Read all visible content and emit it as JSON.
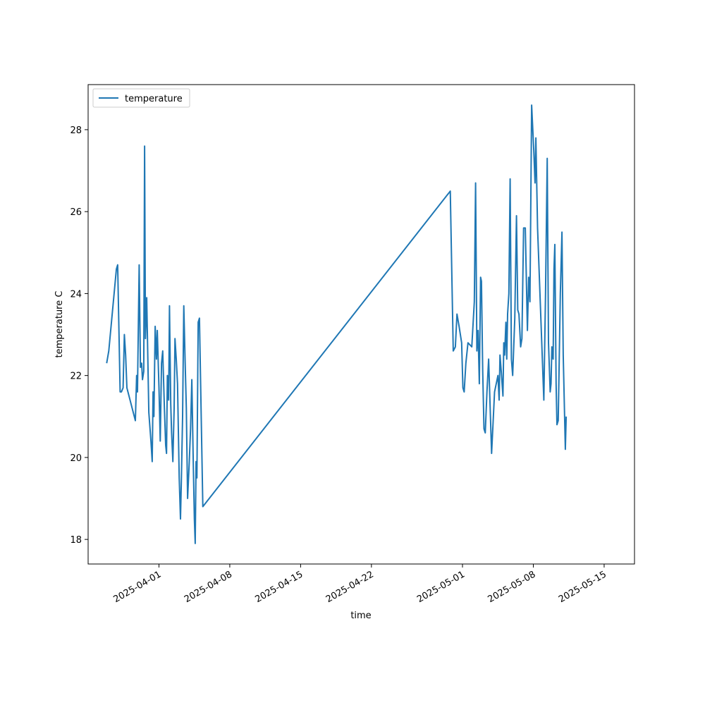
{
  "chart_data": {
    "type": "line",
    "title": "",
    "xlabel": "time",
    "ylabel": "temperature C",
    "x_type": "date",
    "xlim": [
      "2025-03-25",
      "2025-05-18"
    ],
    "ylim": [
      17.4,
      29.1
    ],
    "x_ticks": [
      "2025-04-01",
      "2025-04-08",
      "2025-04-15",
      "2025-04-22",
      "2025-05-01",
      "2025-05-08",
      "2025-05-15"
    ],
    "y_ticks": [
      18,
      20,
      22,
      24,
      26,
      28
    ],
    "grid": false,
    "legend": "upper-left",
    "series": [
      {
        "name": "temperature",
        "color": "#1f77b4",
        "points": [
          [
            "2025-03-26T20:00",
            22.3
          ],
          [
            "2025-03-27T01:00",
            22.6
          ],
          [
            "2025-03-27T19:00",
            24.6
          ],
          [
            "2025-03-27T22:00",
            24.7
          ],
          [
            "2025-03-28T04:00",
            21.6
          ],
          [
            "2025-03-28T07:00",
            21.6
          ],
          [
            "2025-03-28T11:00",
            21.7
          ],
          [
            "2025-03-28T14:00",
            23.0
          ],
          [
            "2025-03-28T17:00",
            22.5
          ],
          [
            "2025-03-28T20:00",
            21.7
          ],
          [
            "2025-03-29T16:00",
            20.9
          ],
          [
            "2025-03-29T19:00",
            22.0
          ],
          [
            "2025-03-29T21:00",
            21.6
          ],
          [
            "2025-03-30T01:00",
            24.7
          ],
          [
            "2025-03-30T04:00",
            22.2
          ],
          [
            "2025-03-30T07:00",
            22.3
          ],
          [
            "2025-03-30T09:00",
            21.9
          ],
          [
            "2025-03-30T12:00",
            22.1
          ],
          [
            "2025-03-30T14:00",
            27.6
          ],
          [
            "2025-03-30T16:00",
            22.9
          ],
          [
            "2025-03-30T19:00",
            23.9
          ],
          [
            "2025-03-31T00:00",
            21.1
          ],
          [
            "2025-03-31T05:00",
            20.4
          ],
          [
            "2025-03-31T08:00",
            19.9
          ],
          [
            "2025-03-31T10:00",
            21.6
          ],
          [
            "2025-03-31T12:00",
            21.0
          ],
          [
            "2025-03-31T15:00",
            23.2
          ],
          [
            "2025-03-31T18:00",
            22.4
          ],
          [
            "2025-03-31T20:00",
            23.1
          ],
          [
            "2025-04-01T00:00",
            21.7
          ],
          [
            "2025-04-01T03:00",
            20.4
          ],
          [
            "2025-04-01T06:00",
            22.3
          ],
          [
            "2025-04-01T09:00",
            22.6
          ],
          [
            "2025-04-01T13:00",
            21.2
          ],
          [
            "2025-04-01T16:00",
            20.3
          ],
          [
            "2025-04-01T18:00",
            20.1
          ],
          [
            "2025-04-01T20:00",
            22.0
          ],
          [
            "2025-04-01T23:00",
            21.4
          ],
          [
            "2025-04-02T01:00",
            23.7
          ],
          [
            "2025-04-02T04:00",
            21.3
          ],
          [
            "2025-04-02T06:00",
            20.6
          ],
          [
            "2025-04-02T09:00",
            19.9
          ],
          [
            "2025-04-02T12:00",
            21.2
          ],
          [
            "2025-04-02T14:00",
            22.9
          ],
          [
            "2025-04-02T17:00",
            22.4
          ],
          [
            "2025-04-02T20:00",
            21.8
          ],
          [
            "2025-04-03T00:00",
            19.5
          ],
          [
            "2025-04-03T03:00",
            18.5
          ],
          [
            "2025-04-03T05:00",
            19.4
          ],
          [
            "2025-04-03T08:00",
            21.0
          ],
          [
            "2025-04-03T11:00",
            23.7
          ],
          [
            "2025-04-03T14:00",
            22.4
          ],
          [
            "2025-04-03T17:00",
            21.2
          ],
          [
            "2025-04-03T20:00",
            19.0
          ],
          [
            "2025-04-04T00:00",
            19.9
          ],
          [
            "2025-04-04T03:00",
            20.7
          ],
          [
            "2025-04-04T06:00",
            21.9
          ],
          [
            "2025-04-04T09:00",
            20.1
          ],
          [
            "2025-04-04T12:00",
            18.5
          ],
          [
            "2025-04-04T14:00",
            17.9
          ],
          [
            "2025-04-04T16:00",
            19.9
          ],
          [
            "2025-04-04T18:00",
            19.5
          ],
          [
            "2025-04-04T21:00",
            23.3
          ],
          [
            "2025-04-05T00:00",
            23.4
          ],
          [
            "2025-04-05T08:00",
            18.8
          ],
          [
            "2025-04-29T19:00",
            26.5
          ],
          [
            "2025-04-30T02:00",
            22.6
          ],
          [
            "2025-04-30T07:00",
            22.7
          ],
          [
            "2025-04-30T11:00",
            23.5
          ],
          [
            "2025-04-30T16:00",
            23.2
          ],
          [
            "2025-04-30T22:00",
            22.8
          ],
          [
            "2025-05-01T01:00",
            21.7
          ],
          [
            "2025-05-01T04:00",
            21.6
          ],
          [
            "2025-05-01T08:00",
            22.3
          ],
          [
            "2025-05-01T13:00",
            22.8
          ],
          [
            "2025-05-01T22:00",
            22.7
          ],
          [
            "2025-05-02T04:00",
            23.8
          ],
          [
            "2025-05-02T07:00",
            26.7
          ],
          [
            "2025-05-02T10:00",
            22.6
          ],
          [
            "2025-05-02T13:00",
            23.1
          ],
          [
            "2025-05-02T16:00",
            21.8
          ],
          [
            "2025-05-02T19:00",
            24.4
          ],
          [
            "2025-05-02T21:00",
            24.3
          ],
          [
            "2025-05-03T00:00",
            22.1
          ],
          [
            "2025-05-03T03:00",
            20.7
          ],
          [
            "2025-05-03T06:00",
            20.6
          ],
          [
            "2025-05-03T10:00",
            21.6
          ],
          [
            "2025-05-03T14:00",
            22.4
          ],
          [
            "2025-05-03T21:00",
            20.1
          ],
          [
            "2025-05-04T04:00",
            21.6
          ],
          [
            "2025-05-04T12:00",
            22.0
          ],
          [
            "2025-05-04T15:00",
            21.4
          ],
          [
            "2025-05-04T17:00",
            22.5
          ],
          [
            "2025-05-04T20:00",
            22.1
          ],
          [
            "2025-05-05T00:00",
            21.5
          ],
          [
            "2025-05-05T02:00",
            22.8
          ],
          [
            "2025-05-05T04:00",
            22.5
          ],
          [
            "2025-05-05T07:00",
            23.3
          ],
          [
            "2025-05-05T09:00",
            22.4
          ],
          [
            "2025-05-05T11:00",
            23.5
          ],
          [
            "2025-05-05T14:00",
            24.0
          ],
          [
            "2025-05-05T17:00",
            26.8
          ],
          [
            "2025-05-05T20:00",
            22.4
          ],
          [
            "2025-05-05T23:00",
            22.0
          ],
          [
            "2025-05-06T04:00",
            23.4
          ],
          [
            "2025-05-06T08:00",
            25.9
          ],
          [
            "2025-05-06T11:00",
            23.6
          ],
          [
            "2025-05-06T14:00",
            23.5
          ],
          [
            "2025-05-06T18:00",
            22.7
          ],
          [
            "2025-05-06T21:00",
            22.9
          ],
          [
            "2025-05-07T01:00",
            25.6
          ],
          [
            "2025-05-07T05:00",
            25.6
          ],
          [
            "2025-05-07T10:00",
            23.1
          ],
          [
            "2025-05-07T13:00",
            24.4
          ],
          [
            "2025-05-07T16:00",
            23.8
          ],
          [
            "2025-05-07T20:00",
            28.6
          ],
          [
            "2025-05-08T01:00",
            27.5
          ],
          [
            "2025-05-08T04:00",
            26.7
          ],
          [
            "2025-05-08T06:00",
            27.8
          ],
          [
            "2025-05-08T10:00",
            25.6
          ],
          [
            "2025-05-09T01:00",
            21.4
          ],
          [
            "2025-05-09T05:00",
            24.0
          ],
          [
            "2025-05-09T09:00",
            27.3
          ],
          [
            "2025-05-09T12:00",
            22.8
          ],
          [
            "2025-05-09T16:00",
            21.6
          ],
          [
            "2025-05-09T18:00",
            21.8
          ],
          [
            "2025-05-09T20:00",
            22.7
          ],
          [
            "2025-05-09T23:00",
            22.4
          ],
          [
            "2025-05-10T01:00",
            24.6
          ],
          [
            "2025-05-10T03:00",
            25.2
          ],
          [
            "2025-05-10T06:00",
            21.8
          ],
          [
            "2025-05-10T08:00",
            20.8
          ],
          [
            "2025-05-10T11:00",
            20.9
          ],
          [
            "2025-05-10T16:00",
            24.0
          ],
          [
            "2025-05-10T20:00",
            25.5
          ],
          [
            "2025-05-10T23:00",
            22.5
          ],
          [
            "2025-05-11T04:00",
            20.2
          ],
          [
            "2025-05-11T06:00",
            21.0
          ]
        ]
      }
    ]
  }
}
